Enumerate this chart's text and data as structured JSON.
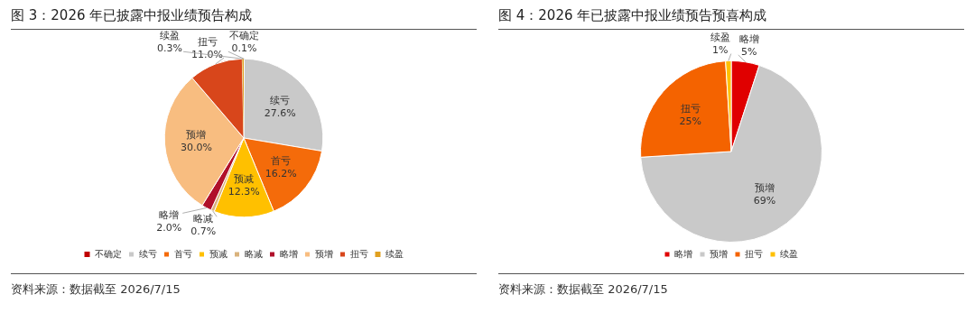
{
  "chart_data": [
    {
      "type": "pie",
      "title": "图 3：2026 年已披露中报业绩预告构成",
      "categories": [
        "不确定",
        "续亏",
        "首亏",
        "预减",
        "略减",
        "略增",
        "预增",
        "扭亏",
        "续盈"
      ],
      "values": [
        0.1,
        27.6,
        16.2,
        12.3,
        0.7,
        2.0,
        30.0,
        11.0,
        0.3
      ],
      "value_labels": [
        "0.1%",
        "27.6%",
        "16.2%",
        "12.3%",
        "0.7%",
        "2.0%",
        "30.0%",
        "11.0%",
        "0.3%"
      ],
      "colors": [
        "#c00000",
        "#c9c9c9",
        "#f46b0a",
        "#ffc000",
        "#d9b27c",
        "#b0102a",
        "#f8bd80",
        "#d8461b",
        "#e0a020"
      ],
      "legend": "bottom",
      "annotations": [
        "资料来源：数据截至 2026/7/15"
      ]
    },
    {
      "type": "pie",
      "title": "图 4：2026 年已披露中报业绩预告预喜构成",
      "categories": [
        "略增",
        "预增",
        "扭亏",
        "续盈"
      ],
      "values": [
        5,
        69,
        25,
        1
      ],
      "value_labels": [
        "5%",
        "69%",
        "25%",
        "1%"
      ],
      "colors": [
        "#e00000",
        "#c9c9c9",
        "#f46300",
        "#ffc000"
      ],
      "legend": "bottom",
      "annotations": [
        "资料来源：数据截至 2026/7/15"
      ]
    }
  ]
}
